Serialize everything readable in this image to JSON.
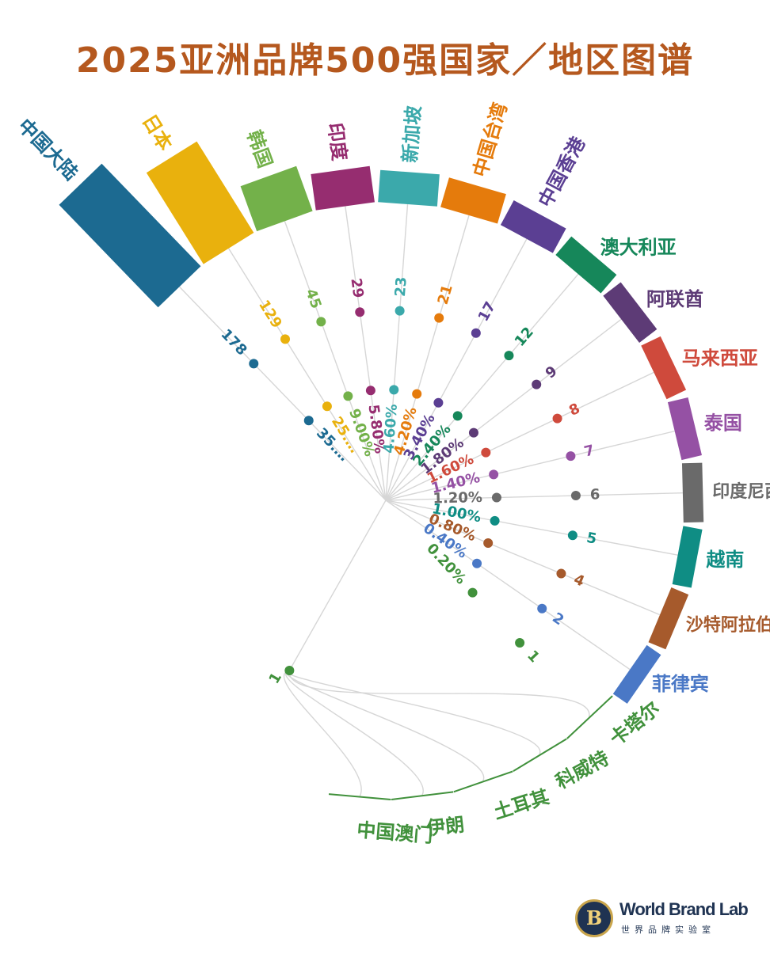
{
  "title": "2025亚洲品牌500强国家／地区图谱",
  "chart_data": {
    "type": "radial-bar",
    "title": "2025亚洲品牌500强国家／地区图谱",
    "categories": [
      "中国大陆",
      "日本",
      "韩国",
      "印度",
      "新加坡",
      "中国台湾",
      "中国香港",
      "澳大利亚",
      "阿联酋",
      "马来西亚",
      "泰国",
      "印度尼西亚",
      "越南",
      "沙特阿拉伯",
      "菲律宾",
      "卡塔尔",
      "科威特",
      "土耳其",
      "伊朗",
      "中国澳门"
    ],
    "counts": [
      178,
      129,
      45,
      29,
      23,
      21,
      17,
      12,
      9,
      8,
      7,
      6,
      5,
      4,
      2,
      1,
      1,
      1,
      1,
      1
    ],
    "count_labels": [
      "178",
      "129",
      "45",
      "29",
      "23",
      "21",
      "17",
      "12",
      "9",
      "8",
      "7",
      "6",
      "5",
      "4",
      "2",
      "1",
      "",
      "",
      "",
      ""
    ],
    "share_labels": [
      "35.…",
      "25.…",
      "9.00%",
      "5.80%",
      "4.60%",
      "4.20%",
      "3.40%",
      "2.40%",
      "1.80%",
      "1.60%",
      "1.40%",
      "1.20%",
      "1.00%",
      "0.80%",
      "0.40%",
      "0.20%",
      "",
      "",
      "",
      ""
    ],
    "colors": [
      "#1c6a91",
      "#e9b10d",
      "#73b14a",
      "#962d70",
      "#3ba9ab",
      "#e57b0c",
      "#5b3f93",
      "#16875a",
      "#5d3b76",
      "#cf4a3c",
      "#9551a4",
      "#6a6a6a",
      "#0f8d84",
      "#a65a2c",
      "#4a78c6",
      "#41913c",
      "#41913c",
      "#41913c",
      "#41913c",
      "#41913c"
    ]
  },
  "logo": {
    "mark": "B",
    "name": "World Brand Lab",
    "subtitle": "世界品牌实验室"
  }
}
